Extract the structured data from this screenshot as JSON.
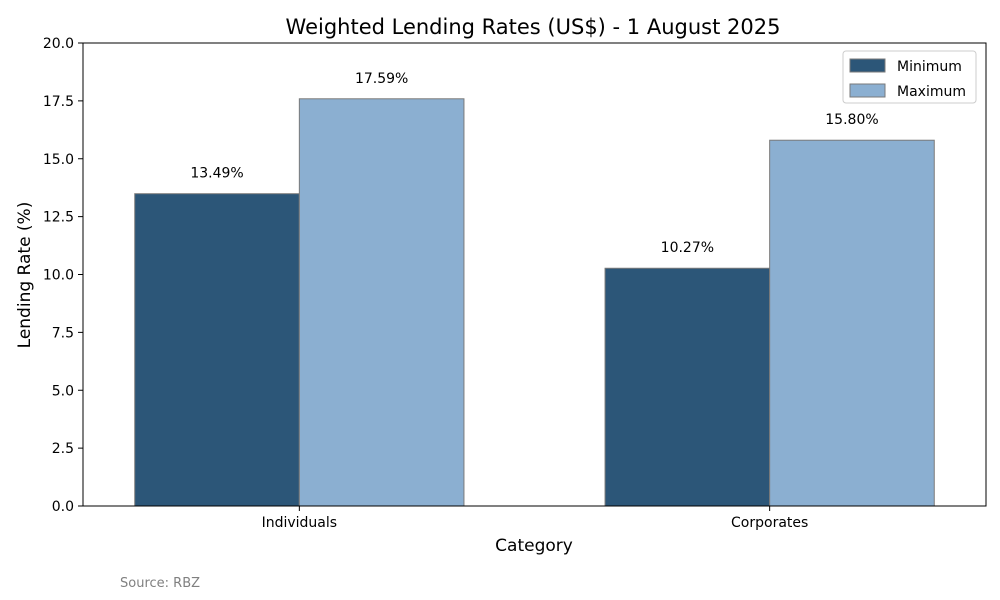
{
  "chart_data": {
    "type": "bar",
    "title": "Weighted Lending Rates (US$) - 1 August 2025",
    "xlabel": "Category",
    "ylabel": "Lending Rate (%)",
    "categories": [
      "Individuals",
      "Corporates"
    ],
    "series": [
      {
        "name": "Minimum",
        "values": [
          13.49,
          10.27
        ],
        "labels": [
          "13.49%",
          "10.27%"
        ],
        "color": "#2c5678"
      },
      {
        "name": "Maximum",
        "values": [
          17.59,
          15.8
        ],
        "labels": [
          "17.59%",
          "15.80%"
        ],
        "color": "#8bafd1"
      }
    ],
    "ylim": [
      0,
      20
    ],
    "yticks": [
      "0.0",
      "2.5",
      "5.0",
      "7.5",
      "10.0",
      "12.5",
      "15.0",
      "17.5",
      "20.0"
    ],
    "grid": false,
    "legend_position": "top-right",
    "bar_edge_color": "#7a7a7a"
  },
  "source": "Source: RBZ"
}
